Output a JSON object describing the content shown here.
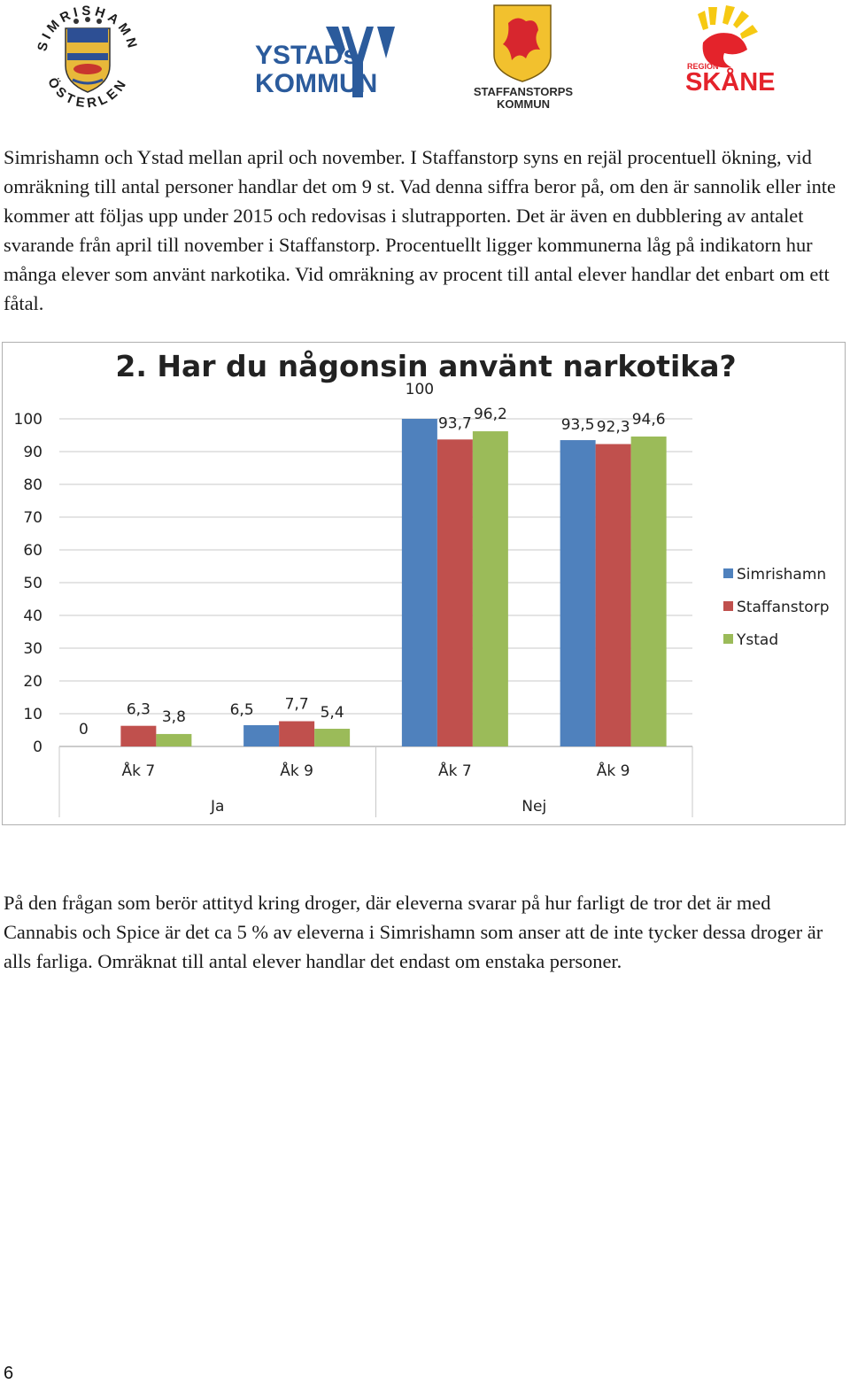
{
  "header": {
    "logos": [
      {
        "name": "Simrishamn Österlen",
        "text_top": "SIMRISHAMN",
        "text_bottom": "ÖSTERLEN"
      },
      {
        "name": "Ystads kommun",
        "line1": "YSTADs",
        "line2": "KOMMUN"
      },
      {
        "name": "Staffanstorps kommun",
        "line1": "STAFFANSTORPS",
        "line2": "KOMMUN"
      },
      {
        "name": "Region Skåne",
        "line1": "REGION",
        "line2": "SKÅNE"
      }
    ]
  },
  "paragraphs": {
    "intro": "Simrishamn och Ystad mellan april och november. I Staffanstorp syns en rejäl procentuell ökning, vid omräkning till antal personer handlar det om 9 st. Vad denna siffra beror på, om den är sannolik eller inte kommer att följas upp under 2015 och redovisas i slutrapporten. Det är även en dubblering av antalet svarande från april till november i Staffanstorp. Procentuellt ligger kommunerna låg på indikatorn hur många elever som använt narkotika. Vid omräkning av procent till antal elever handlar det enbart om ett fåtal.",
    "outro": "På den frågan som berör attityd kring droger, där eleverna svarar på hur farligt de tror det är med Cannabis och Spice är det ca 5 % av eleverna i Simrishamn som anser att de inte tycker dessa droger är alls farliga. Omräknat till antal elever handlar det endast om enstaka personer."
  },
  "chart_data": {
    "type": "bar",
    "title": "2. Har du någonsin använt narkotika?",
    "categories": [
      "Åk 7",
      "Åk 9",
      "Åk 7",
      "Åk 9"
    ],
    "groups": [
      {
        "label": "Ja",
        "categories": [
          "Åk 7",
          "Åk 9"
        ]
      },
      {
        "label": "Nej",
        "categories": [
          "Åk 7",
          "Åk 9"
        ]
      }
    ],
    "series": [
      {
        "name": "Simrishamn",
        "color": "#4f81bd",
        "values": [
          0,
          6.5,
          100,
          93.5
        ],
        "labels": [
          "0",
          "6,5",
          "100",
          "93,5"
        ]
      },
      {
        "name": "Staffanstorp",
        "color": "#c0504d",
        "values": [
          6.3,
          7.7,
          93.7,
          92.3
        ],
        "labels": [
          "6,3",
          "7,7",
          "93,7",
          "92,3"
        ]
      },
      {
        "name": "Ystad",
        "color": "#9bbb59",
        "values": [
          3.8,
          5.4,
          96.2,
          94.6
        ],
        "labels": [
          "3,8",
          "5,4",
          "96,2",
          "94,6"
        ]
      }
    ],
    "yticks": [
      0,
      10,
      20,
      30,
      40,
      50,
      60,
      70,
      80,
      90,
      100
    ],
    "ylim": [
      0,
      100
    ],
    "grid": true,
    "legend": "right"
  },
  "footer": {
    "page_number": "6"
  }
}
